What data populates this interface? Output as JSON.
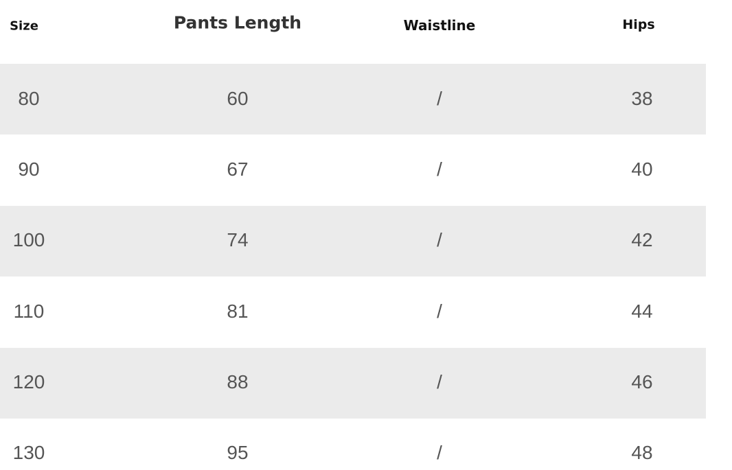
{
  "table": {
    "header": [
      "Size",
      "Pants Length",
      "Waistline",
      "Hips"
    ],
    "rows": [
      [
        80,
        60,
        "/",
        38
      ],
      [
        90,
        67,
        "/",
        40
      ],
      [
        100,
        74,
        "/",
        42
      ],
      [
        110,
        81,
        "/",
        44
      ],
      [
        120,
        88,
        "/",
        46
      ],
      [
        130,
        95,
        "/",
        48
      ]
    ]
  }
}
